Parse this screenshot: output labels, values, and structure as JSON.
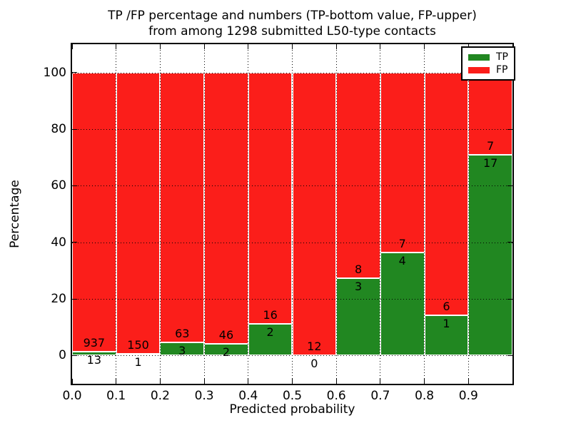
{
  "chart_data": {
    "type": "bar",
    "stacked": true,
    "title_lines": [
      "TP /FP percentage and numbers (TP-bottom value, FP-upper)",
      "from among 1298 submitted L50-type contacts"
    ],
    "xlabel": "Predicted probability",
    "ylabel": "Percentage",
    "total_submitted_contacts": 1298,
    "xlim": [
      0.0,
      1.0
    ],
    "ylim": [
      -10,
      110
    ],
    "xticks": [
      0.0,
      0.1,
      0.2,
      0.3,
      0.4,
      0.5,
      0.6,
      0.7,
      0.8,
      0.9
    ],
    "xtick_labels": [
      "0.0",
      "0.1",
      "0.2",
      "0.3",
      "0.4",
      "0.5",
      "0.6",
      "0.7",
      "0.8",
      "0.9"
    ],
    "yticks": [
      0,
      20,
      40,
      60,
      80,
      100
    ],
    "ytick_labels": [
      "0",
      "20",
      "40",
      "60",
      "80",
      "100"
    ],
    "grid": "dotted",
    "colors": {
      "tp": "#218721",
      "fp": "#fb1e1a",
      "bar_edge": "#ffffff"
    },
    "legend": {
      "position": "upper right",
      "entries": [
        {
          "label": "TP",
          "color": "#218721"
        },
        {
          "label": "FP",
          "color": "#fb1e1a"
        }
      ]
    },
    "bins": [
      {
        "range": [
          0.0,
          0.1
        ],
        "tp": 13,
        "fp": 937,
        "tp_percent": 1.37
      },
      {
        "range": [
          0.1,
          0.2
        ],
        "tp": 1,
        "fp": 150,
        "tp_percent": 0.66
      },
      {
        "range": [
          0.2,
          0.3
        ],
        "tp": 3,
        "fp": 63,
        "tp_percent": 4.55
      },
      {
        "range": [
          0.3,
          0.4
        ],
        "tp": 2,
        "fp": 46,
        "tp_percent": 4.17
      },
      {
        "range": [
          0.4,
          0.5
        ],
        "tp": 2,
        "fp": 16,
        "tp_percent": 11.11
      },
      {
        "range": [
          0.5,
          0.6
        ],
        "tp": 0,
        "fp": 12,
        "tp_percent": 0.0
      },
      {
        "range": [
          0.6,
          0.7
        ],
        "tp": 3,
        "fp": 8,
        "tp_percent": 27.27
      },
      {
        "range": [
          0.7,
          0.8
        ],
        "tp": 4,
        "fp": 7,
        "tp_percent": 36.36
      },
      {
        "range": [
          0.8,
          0.9
        ],
        "tp": 1,
        "fp": 6,
        "tp_percent": 14.29
      },
      {
        "range": [
          0.9,
          1.0
        ],
        "tp": 17,
        "fp": 7,
        "tp_percent": 70.83
      }
    ]
  }
}
